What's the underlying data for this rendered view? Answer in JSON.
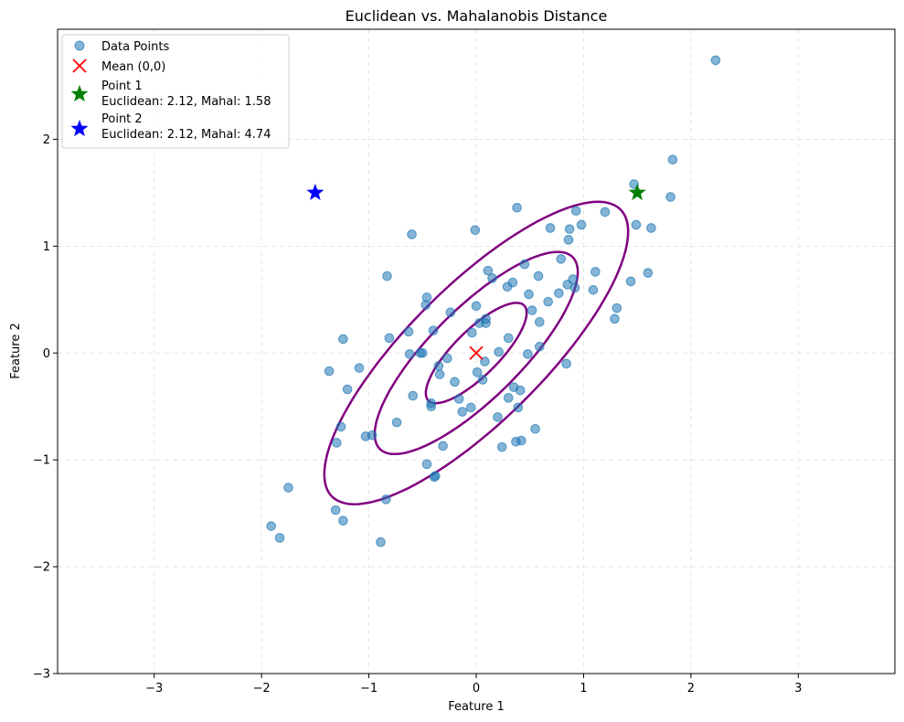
{
  "chart_data": {
    "type": "scatter",
    "title": "Euclidean vs. Mahalanobis Distance",
    "xlabel": "Feature 1",
    "ylabel": "Feature 2",
    "xlim": [
      -3.9,
      3.9
    ],
    "ylim": [
      -3,
      3.03
    ],
    "xticks": [
      -3,
      -2,
      -1,
      0,
      1,
      2,
      3
    ],
    "yticks": [
      -3,
      -2,
      -1,
      0,
      1,
      2
    ],
    "grid": true,
    "legend_position": "top-left",
    "colors": {
      "points": "#1f77b4",
      "mean": "#ff0000",
      "point1": "#008000",
      "point2": "#0000ff",
      "ellipse": "#800080",
      "grid": "#cccccc"
    },
    "series": [
      {
        "name": "Data Points",
        "kind": "scatter",
        "points": [
          [
            2.23,
            2.74
          ],
          [
            1.83,
            1.81
          ],
          [
            1.81,
            1.46
          ],
          [
            1.47,
            1.58
          ],
          [
            1.49,
            1.2
          ],
          [
            1.63,
            1.17
          ],
          [
            0.93,
            1.33
          ],
          [
            0.98,
            1.2
          ],
          [
            0.87,
            1.16
          ],
          [
            0.86,
            1.06
          ],
          [
            1.2,
            1.32
          ],
          [
            0.69,
            1.17
          ],
          [
            0.38,
            1.36
          ],
          [
            -0.01,
            1.15
          ],
          [
            -0.6,
            1.11
          ],
          [
            0.79,
            0.88
          ],
          [
            1.11,
            0.76
          ],
          [
            1.44,
            0.67
          ],
          [
            1.6,
            0.75
          ],
          [
            1.09,
            0.59
          ],
          [
            1.31,
            0.42
          ],
          [
            1.29,
            0.32
          ],
          [
            0.9,
            0.69
          ],
          [
            0.85,
            0.64
          ],
          [
            0.92,
            0.61
          ],
          [
            0.77,
            0.56
          ],
          [
            0.67,
            0.48
          ],
          [
            0.58,
            0.72
          ],
          [
            0.45,
            0.83
          ],
          [
            0.11,
            0.77
          ],
          [
            0.15,
            0.7
          ],
          [
            0.34,
            0.66
          ],
          [
            0.29,
            0.62
          ],
          [
            0.49,
            0.55
          ],
          [
            0.52,
            0.4
          ],
          [
            0.59,
            0.29
          ],
          [
            0.0,
            0.44
          ],
          [
            -0.24,
            0.38
          ],
          [
            0.03,
            0.28
          ],
          [
            0.09,
            0.32
          ],
          [
            0.09,
            0.28
          ],
          [
            -0.04,
            0.19
          ],
          [
            -0.46,
            0.52
          ],
          [
            -0.47,
            0.45
          ],
          [
            -0.83,
            0.72
          ],
          [
            -0.81,
            0.14
          ],
          [
            -0.63,
            0.2
          ],
          [
            -0.4,
            0.21
          ],
          [
            -1.24,
            0.13
          ],
          [
            0.3,
            0.14
          ],
          [
            0.59,
            0.06
          ],
          [
            0.21,
            0.01
          ],
          [
            0.48,
            -0.01
          ],
          [
            -0.62,
            -0.01
          ],
          [
            -0.52,
            0.0
          ],
          [
            -0.5,
            0.0
          ],
          [
            -0.27,
            -0.05
          ],
          [
            0.08,
            -0.08
          ],
          [
            -0.35,
            -0.12
          ],
          [
            -1.37,
            -0.17
          ],
          [
            -1.09,
            -0.14
          ],
          [
            0.01,
            -0.18
          ],
          [
            -0.34,
            -0.2
          ],
          [
            -0.2,
            -0.27
          ],
          [
            0.06,
            -0.25
          ],
          [
            0.84,
            -0.1
          ],
          [
            -1.2,
            -0.34
          ],
          [
            0.35,
            -0.32
          ],
          [
            0.41,
            -0.35
          ],
          [
            -0.59,
            -0.4
          ],
          [
            -0.16,
            -0.43
          ],
          [
            0.3,
            -0.42
          ],
          [
            -0.42,
            -0.47
          ],
          [
            -0.42,
            -0.5
          ],
          [
            -0.05,
            -0.51
          ],
          [
            0.39,
            -0.51
          ],
          [
            -0.13,
            -0.55
          ],
          [
            0.2,
            -0.6
          ],
          [
            -0.74,
            -0.65
          ],
          [
            -1.26,
            -0.69
          ],
          [
            -1.03,
            -0.78
          ],
          [
            -0.97,
            -0.77
          ],
          [
            0.55,
            -0.71
          ],
          [
            -1.3,
            -0.84
          ],
          [
            -0.31,
            -0.87
          ],
          [
            0.37,
            -0.83
          ],
          [
            0.42,
            -0.82
          ],
          [
            0.24,
            -0.88
          ],
          [
            -0.46,
            -1.04
          ],
          [
            -0.38,
            -1.15
          ],
          [
            -0.39,
            -1.16
          ],
          [
            -1.75,
            -1.26
          ],
          [
            -1.31,
            -1.47
          ],
          [
            -0.84,
            -1.37
          ],
          [
            -1.24,
            -1.57
          ],
          [
            -1.91,
            -1.62
          ],
          [
            -1.83,
            -1.73
          ],
          [
            -0.89,
            -1.77
          ]
        ]
      },
      {
        "name": "Mean (0,0)",
        "kind": "marker-x",
        "points": [
          [
            0,
            0
          ]
        ]
      },
      {
        "name": "Point 1",
        "detail": "Euclidean: 2.12, Mahal: 1.58",
        "kind": "marker-star",
        "points": [
          [
            1.5,
            1.5
          ]
        ]
      },
      {
        "name": "Point 2",
        "detail": "Euclidean: 2.12, Mahal: 4.74",
        "kind": "marker-star",
        "points": [
          [
            -1.5,
            1.5
          ]
        ]
      }
    ],
    "ellipses": [
      {
        "level": 1,
        "center": [
          0,
          0
        ],
        "semi_major": 0.63,
        "semi_minor": 0.21,
        "angle_deg": 45
      },
      {
        "level": 2,
        "center": [
          0,
          0
        ],
        "semi_major": 1.27,
        "semi_minor": 0.42,
        "angle_deg": 45
      },
      {
        "level": 3,
        "center": [
          0,
          0
        ],
        "semi_major": 1.9,
        "semi_minor": 0.63,
        "angle_deg": 45
      }
    ]
  }
}
